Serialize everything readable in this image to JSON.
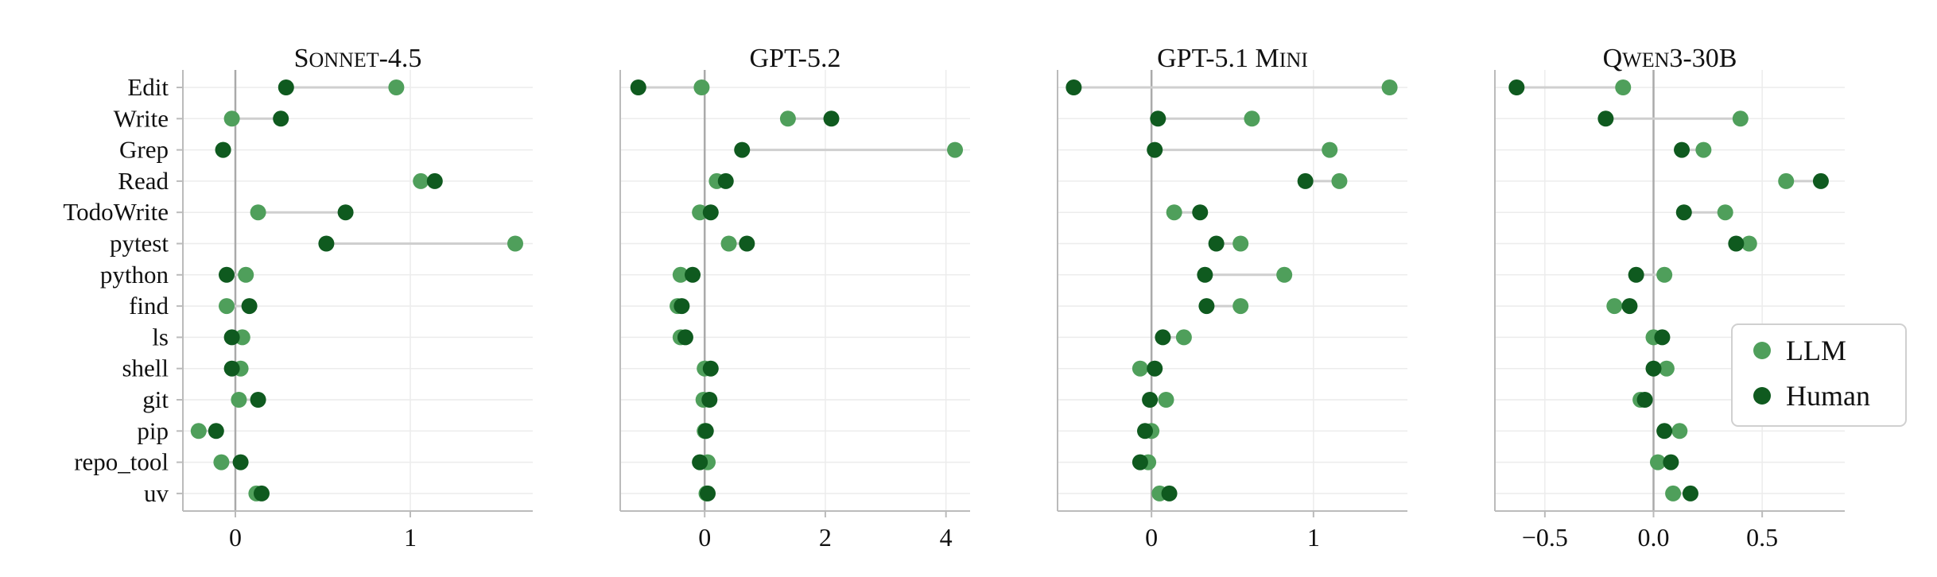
{
  "chart_data": {
    "type": "dumbbell",
    "categories": [
      "Edit",
      "Write",
      "Grep",
      "Read",
      "TodoWrite",
      "pytest",
      "python",
      "find",
      "ls",
      "shell",
      "git",
      "pip",
      "repo_tool",
      "uv"
    ],
    "legend": [
      {
        "name": "LLM",
        "color": "#4f9f5b"
      },
      {
        "name": "Human",
        "color": "#0f5a1f"
      }
    ],
    "legend_position": "center-right",
    "grid": true,
    "connector_color": "#cfcfcf",
    "zero_line_color": "#aaaaaa",
    "panels": [
      {
        "title_main": "S",
        "title_small": "ONNET",
        "title_rest": "-4.5",
        "xlim": [
          -0.3,
          1.7
        ],
        "ticks": [
          {
            "v": 0,
            "label": "0"
          },
          {
            "v": 1,
            "label": "1"
          }
        ],
        "llm": [
          0.92,
          -0.02,
          -0.07,
          1.06,
          0.13,
          1.6,
          0.06,
          -0.05,
          0.04,
          0.03,
          0.02,
          -0.21,
          -0.08,
          0.12
        ],
        "human": [
          0.29,
          0.26,
          -0.07,
          1.14,
          0.63,
          0.52,
          -0.05,
          0.08,
          -0.02,
          -0.02,
          0.13,
          -0.11,
          0.03,
          0.15
        ]
      },
      {
        "title_main": "GPT-5.2",
        "title_small": "",
        "title_rest": "",
        "xlim": [
          -1.4,
          4.4
        ],
        "ticks": [
          {
            "v": 0,
            "label": "0"
          },
          {
            "v": 2,
            "label": "2"
          },
          {
            "v": 4,
            "label": "4"
          }
        ],
        "llm": [
          -0.05,
          1.38,
          4.15,
          0.2,
          -0.08,
          0.4,
          -0.4,
          -0.45,
          -0.4,
          0.0,
          -0.02,
          0.0,
          0.05,
          0.03
        ],
        "human": [
          -1.1,
          2.1,
          0.62,
          0.35,
          0.1,
          0.7,
          -0.2,
          -0.38,
          -0.32,
          0.1,
          0.08,
          0.02,
          -0.08,
          0.05
        ]
      },
      {
        "title_main": "GPT-5.1 M",
        "title_small": "INI",
        "title_rest": "",
        "xlim": [
          -0.58,
          1.58
        ],
        "ticks": [
          {
            "v": 0,
            "label": "0"
          },
          {
            "v": 1,
            "label": "1"
          }
        ],
        "llm": [
          1.47,
          0.62,
          1.1,
          1.16,
          0.14,
          0.55,
          0.82,
          0.55,
          0.2,
          -0.07,
          0.09,
          0.0,
          -0.02,
          0.05
        ],
        "human": [
          -0.48,
          0.04,
          0.02,
          0.95,
          0.3,
          0.4,
          0.33,
          0.34,
          0.07,
          0.02,
          -0.01,
          -0.04,
          -0.07,
          0.11
        ]
      },
      {
        "title_main": "Q",
        "title_small": "WEN",
        "title_rest": "3-30B",
        "xlim": [
          -0.73,
          0.88
        ],
        "ticks": [
          {
            "v": -0.5,
            "label": "−0.5"
          },
          {
            "v": 0.0,
            "label": "0.0"
          },
          {
            "v": 0.5,
            "label": "0.5"
          }
        ],
        "llm": [
          -0.14,
          0.4,
          0.23,
          0.61,
          0.33,
          0.44,
          0.05,
          -0.18,
          0.0,
          0.06,
          -0.06,
          0.12,
          0.02,
          0.09
        ],
        "human": [
          -0.63,
          -0.22,
          0.13,
          0.77,
          0.14,
          0.38,
          -0.08,
          -0.11,
          0.04,
          0.0,
          -0.04,
          0.05,
          0.08,
          0.17
        ]
      }
    ]
  }
}
